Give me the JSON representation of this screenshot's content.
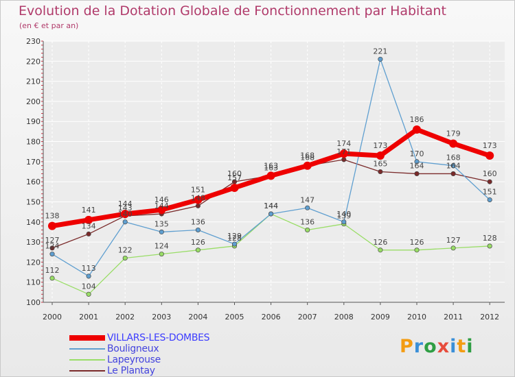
{
  "title": "Evolution de la Dotation Globale de Fonctionnement par Habitant",
  "subtitle": "(en € et par an)",
  "logo": {
    "letters": [
      "P",
      "r",
      "o",
      "x",
      "i",
      "t",
      "i"
    ],
    "colors": [
      "#f39c12",
      "#3a8fd8",
      "#2f9e44",
      "#e74c3c",
      "#3a8fd8",
      "#f39c12",
      "#2f9e44"
    ]
  },
  "chart_data": {
    "type": "line",
    "title": "Evolution de la Dotation Globale de Fonctionnement par Habitant",
    "subtitle": "(en € et par an)",
    "xlabel": "",
    "ylabel": "",
    "ylim": [
      100,
      230
    ],
    "yticks": [
      100,
      110,
      120,
      130,
      140,
      150,
      160,
      170,
      180,
      190,
      200,
      210,
      220,
      230
    ],
    "categories": [
      "2000",
      "2001",
      "2002",
      "2003",
      "2004",
      "2005",
      "2006",
      "2007",
      "2008",
      "2009",
      "2010",
      "2011",
      "2012"
    ],
    "grid": true,
    "legend_position": "bottom-left",
    "series": [
      {
        "name": "VILLARS-LES-DOMBES",
        "color": "#ee0000",
        "values": [
          138,
          141,
          144,
          146,
          151,
          157,
          163,
          168,
          174,
          173,
          186,
          179,
          173
        ]
      },
      {
        "name": "Bouligneux",
        "color": "#5f9fd0",
        "values": [
          124,
          113,
          140,
          135,
          136,
          129,
          144,
          147,
          140,
          221,
          170,
          168,
          151
        ]
      },
      {
        "name": "Lapeyrouse",
        "color": "#99dd66",
        "values": [
          112,
          104,
          122,
          124,
          126,
          128,
          144,
          136,
          139,
          126,
          126,
          127,
          128
        ]
      },
      {
        "name": "Le Plantay",
        "color": "#7a2a2a",
        "values": [
          127,
          134,
          143,
          144,
          148,
          160,
          163,
          168,
          171,
          165,
          164,
          164,
          160
        ]
      }
    ]
  }
}
